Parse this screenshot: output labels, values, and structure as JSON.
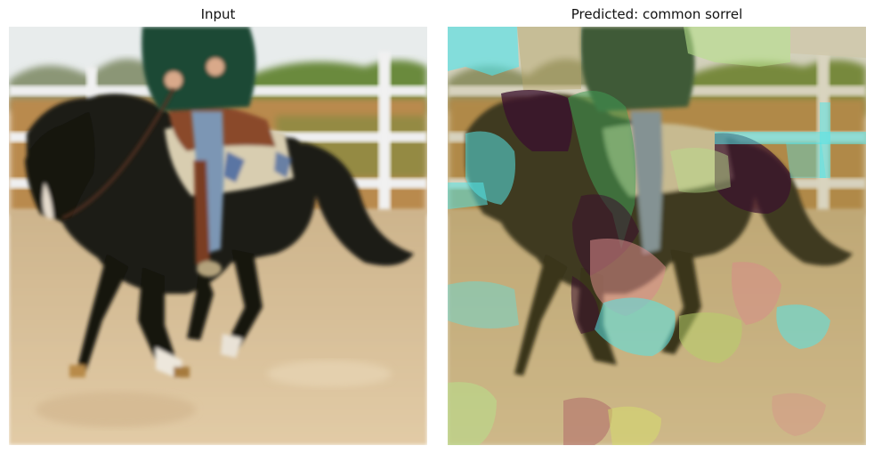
{
  "panels": {
    "left": {
      "title": "Input"
    },
    "right": {
      "title": "Predicted: common sorrel"
    }
  },
  "colors": {
    "sky": "#e8ecec",
    "fence": "#efeff0",
    "trees": "#6b8a3c",
    "bush_brown": "#b98a4e",
    "sand": "#d9bf98",
    "horse": "#1a1a14",
    "jacket": "#1f4a36",
    "jeans": "#7b96b4",
    "saddle": "#8a4a2c",
    "pad": "#d8cdb0"
  },
  "overlay": {
    "segments": [
      {
        "name": "segment-cyan-topleft",
        "color": "#4fe6f0",
        "opacity": 0.6
      },
      {
        "name": "segment-tan-top",
        "color": "#b8a66a",
        "opacity": 0.55
      },
      {
        "name": "segment-lightgreen-top",
        "color": "#b6e08a",
        "opacity": 0.6
      },
      {
        "name": "segment-gray-topright",
        "color": "#cfc6a8",
        "opacity": 0.6
      },
      {
        "name": "segment-darkpurple-horse",
        "color": "#3a0f2e",
        "opacity": 0.7
      },
      {
        "name": "segment-green-rider",
        "color": "#3f9a54",
        "opacity": 0.6
      },
      {
        "name": "segment-cyan-fence",
        "color": "#56e3e6",
        "opacity": 0.6
      },
      {
        "name": "segment-pink-middle",
        "color": "#d98a8a",
        "opacity": 0.55
      },
      {
        "name": "segment-olive-sand",
        "color": "#a89f4a",
        "opacity": 0.55
      }
    ]
  }
}
